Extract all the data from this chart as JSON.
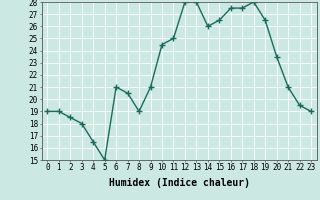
{
  "x": [
    0,
    1,
    2,
    3,
    4,
    5,
    6,
    7,
    8,
    9,
    10,
    11,
    12,
    13,
    14,
    15,
    16,
    17,
    18,
    19,
    20,
    21,
    22,
    23
  ],
  "y": [
    19,
    19,
    18.5,
    18,
    16.5,
    15,
    21,
    20.5,
    19,
    21,
    24.5,
    25,
    28,
    28,
    26,
    26.5,
    27.5,
    27.5,
    28,
    26.5,
    23.5,
    21,
    19.5,
    19
  ],
  "line_color": "#1a6b5c",
  "bg_color": "#cbe8e3",
  "grid_color": "#ffffff",
  "xlabel": "Humidex (Indice chaleur)",
  "ylim": [
    15,
    28
  ],
  "xlim_min": -0.5,
  "xlim_max": 23.5,
  "yticks": [
    15,
    16,
    17,
    18,
    19,
    20,
    21,
    22,
    23,
    24,
    25,
    26,
    27,
    28
  ],
  "xticks": [
    0,
    1,
    2,
    3,
    4,
    5,
    6,
    7,
    8,
    9,
    10,
    11,
    12,
    13,
    14,
    15,
    16,
    17,
    18,
    19,
    20,
    21,
    22,
    23
  ],
  "marker": "+",
  "linewidth": 1.0,
  "markersize": 4,
  "xlabel_fontsize": 7,
  "tick_fontsize": 5.5
}
